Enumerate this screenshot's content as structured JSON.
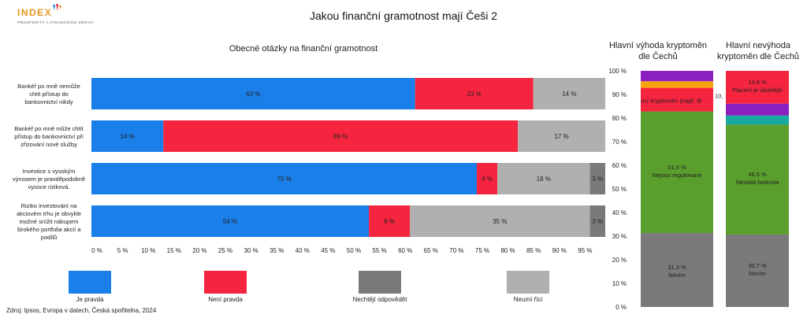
{
  "header": {
    "logo_word": "INDEX",
    "logo_sub": "PROSPERITY A FINANČNÍHO ZDRAVÍ",
    "title": "Jakou finanční gramotnost mají Češi 2"
  },
  "source": "Zdroj: Ipsos, Evropa v datech, Česká spořitelna, 2024",
  "colors": {
    "je_pravda": "#1a7fe8",
    "neni_pravda": "#f5253f",
    "nechteji": "#7a7a7a",
    "neumi": "#b0b0b0",
    "purple": "#8b1fbf",
    "orange": "#f5a30f",
    "green": "#5a9e2e",
    "teal": "#17a8a0",
    "red": "#f5253f",
    "gray": "#7a7a7a"
  },
  "chart_data": [
    {
      "type": "bar",
      "orientation": "horizontal",
      "stacked": true,
      "title": "Obecné otázky na finanční gramotnost",
      "categories": [
        "Bankéř po mně nemůže chtít přístup do bankovnictví nikdy",
        "Bankéř po mně může chtít přístup do bankovnictví při zřizování nové služby",
        "Investice s vysokým výnosem je pravděpodobně vysoce riziková.",
        "Riziko investování na akciovém trhu je obvykle možné snížit nákupem širokého portfolia akcií a podílů"
      ],
      "category_lines": [
        [
          "Bankéř po mně nemůže",
          "chtít přístup do",
          "bankovnictví nikdy"
        ],
        [
          "Bankéř po mně může chtít",
          "přístup do bankovnictví při",
          "zřizování nové služby"
        ],
        [
          "Investice s vysokým",
          "výnosem je pravděpodobně",
          "vysoce riziková."
        ],
        [
          "Riziko investování na",
          "akciovém trhu je obvykle",
          "možné snížit nákupem",
          "širokého portfolia akcií a",
          "podílů"
        ]
      ],
      "series": [
        {
          "name": "Je pravda",
          "values": [
            63,
            14,
            75,
            54
          ],
          "labels": [
            "63 %",
            "14 %",
            "75 %",
            "54 %"
          ]
        },
        {
          "name": "Není pravda",
          "values": [
            23,
            69,
            4,
            8
          ],
          "labels": [
            "23 %",
            "69 %",
            "4 %",
            "8 %"
          ]
        },
        {
          "name": "Neumí říci",
          "values": [
            14,
            17,
            18,
            35
          ],
          "labels": [
            "14 %",
            "17 %",
            "18 %",
            "35 %"
          ]
        },
        {
          "name": "Nechtějí odpovědět",
          "values": [
            0,
            0,
            3,
            3
          ],
          "labels": [
            "",
            "",
            "3 %",
            "3 %"
          ]
        }
      ],
      "xlim": [
        0,
        100
      ],
      "x_ticks": [
        "0 %",
        "5 %",
        "10 %",
        "15 %",
        "20 %",
        "25 %",
        "30 %",
        "35 %",
        "40 %",
        "45 %",
        "50 %",
        "55 %",
        "60 %",
        "65 %",
        "70 %",
        "75 %",
        "80 %",
        "85 %",
        "90 %",
        "95 %"
      ],
      "legend": [
        "Je pravda",
        "Není pravda",
        "Nechtějí odpovědět",
        "Neumí říci"
      ],
      "legend_placement": "bottom"
    },
    {
      "type": "bar",
      "stacked": true,
      "title": "Hlavní výhoda kryptoměn dle Čechů",
      "title_lines": [
        "Hlavní výhoda kryptoměn",
        "dle Čechů"
      ],
      "segments": [
        {
          "value": 31.3,
          "label": "31,3 %",
          "name": "Nevím",
          "color": "#7a7a7a"
        },
        {
          "value": 51.5,
          "label": "51,5 %",
          "name": "Nejsou regulované",
          "color": "#5a9e2e"
        },
        {
          "value": 10,
          "label": "10,",
          "name": "Provoz kryptoměn (např. tě",
          "color": "#f5253f"
        },
        {
          "value": 2.8,
          "label": "",
          "name": "",
          "color": "#f5a30f"
        },
        {
          "value": 4.4,
          "label": "",
          "name": "",
          "color": "#8b1fbf"
        }
      ],
      "ylim": [
        0,
        100
      ],
      "y_ticks": [
        "0 %",
        "10 %",
        "20 %",
        "30 %",
        "40 %",
        "50 %",
        "60 %",
        "70 %",
        "80 %",
        "90 %",
        "100 %"
      ]
    },
    {
      "type": "bar",
      "stacked": true,
      "title": "Hlavní nevýhoda kryptoměn dle Čechů",
      "title_lines": [
        "Hlavní nevýhoda",
        "kryptoměn dle Čechů"
      ],
      "segments": [
        {
          "value": 30.7,
          "label": "30,7 %",
          "name": "Nevím",
          "color": "#7a7a7a"
        },
        {
          "value": 46.5,
          "label": "46,5 %",
          "name": "Nestálá hodnota",
          "color": "#5a9e2e"
        },
        {
          "value": 3.9,
          "label": "",
          "name": "",
          "color": "#17a8a0"
        },
        {
          "value": 5.0,
          "label": "",
          "name": "",
          "color": "#8b1fbf"
        },
        {
          "value": 13.9,
          "label": "13,9 %",
          "name": "Placení je složitější",
          "color": "#f5253f"
        }
      ],
      "ylim": [
        0,
        100
      ]
    }
  ]
}
